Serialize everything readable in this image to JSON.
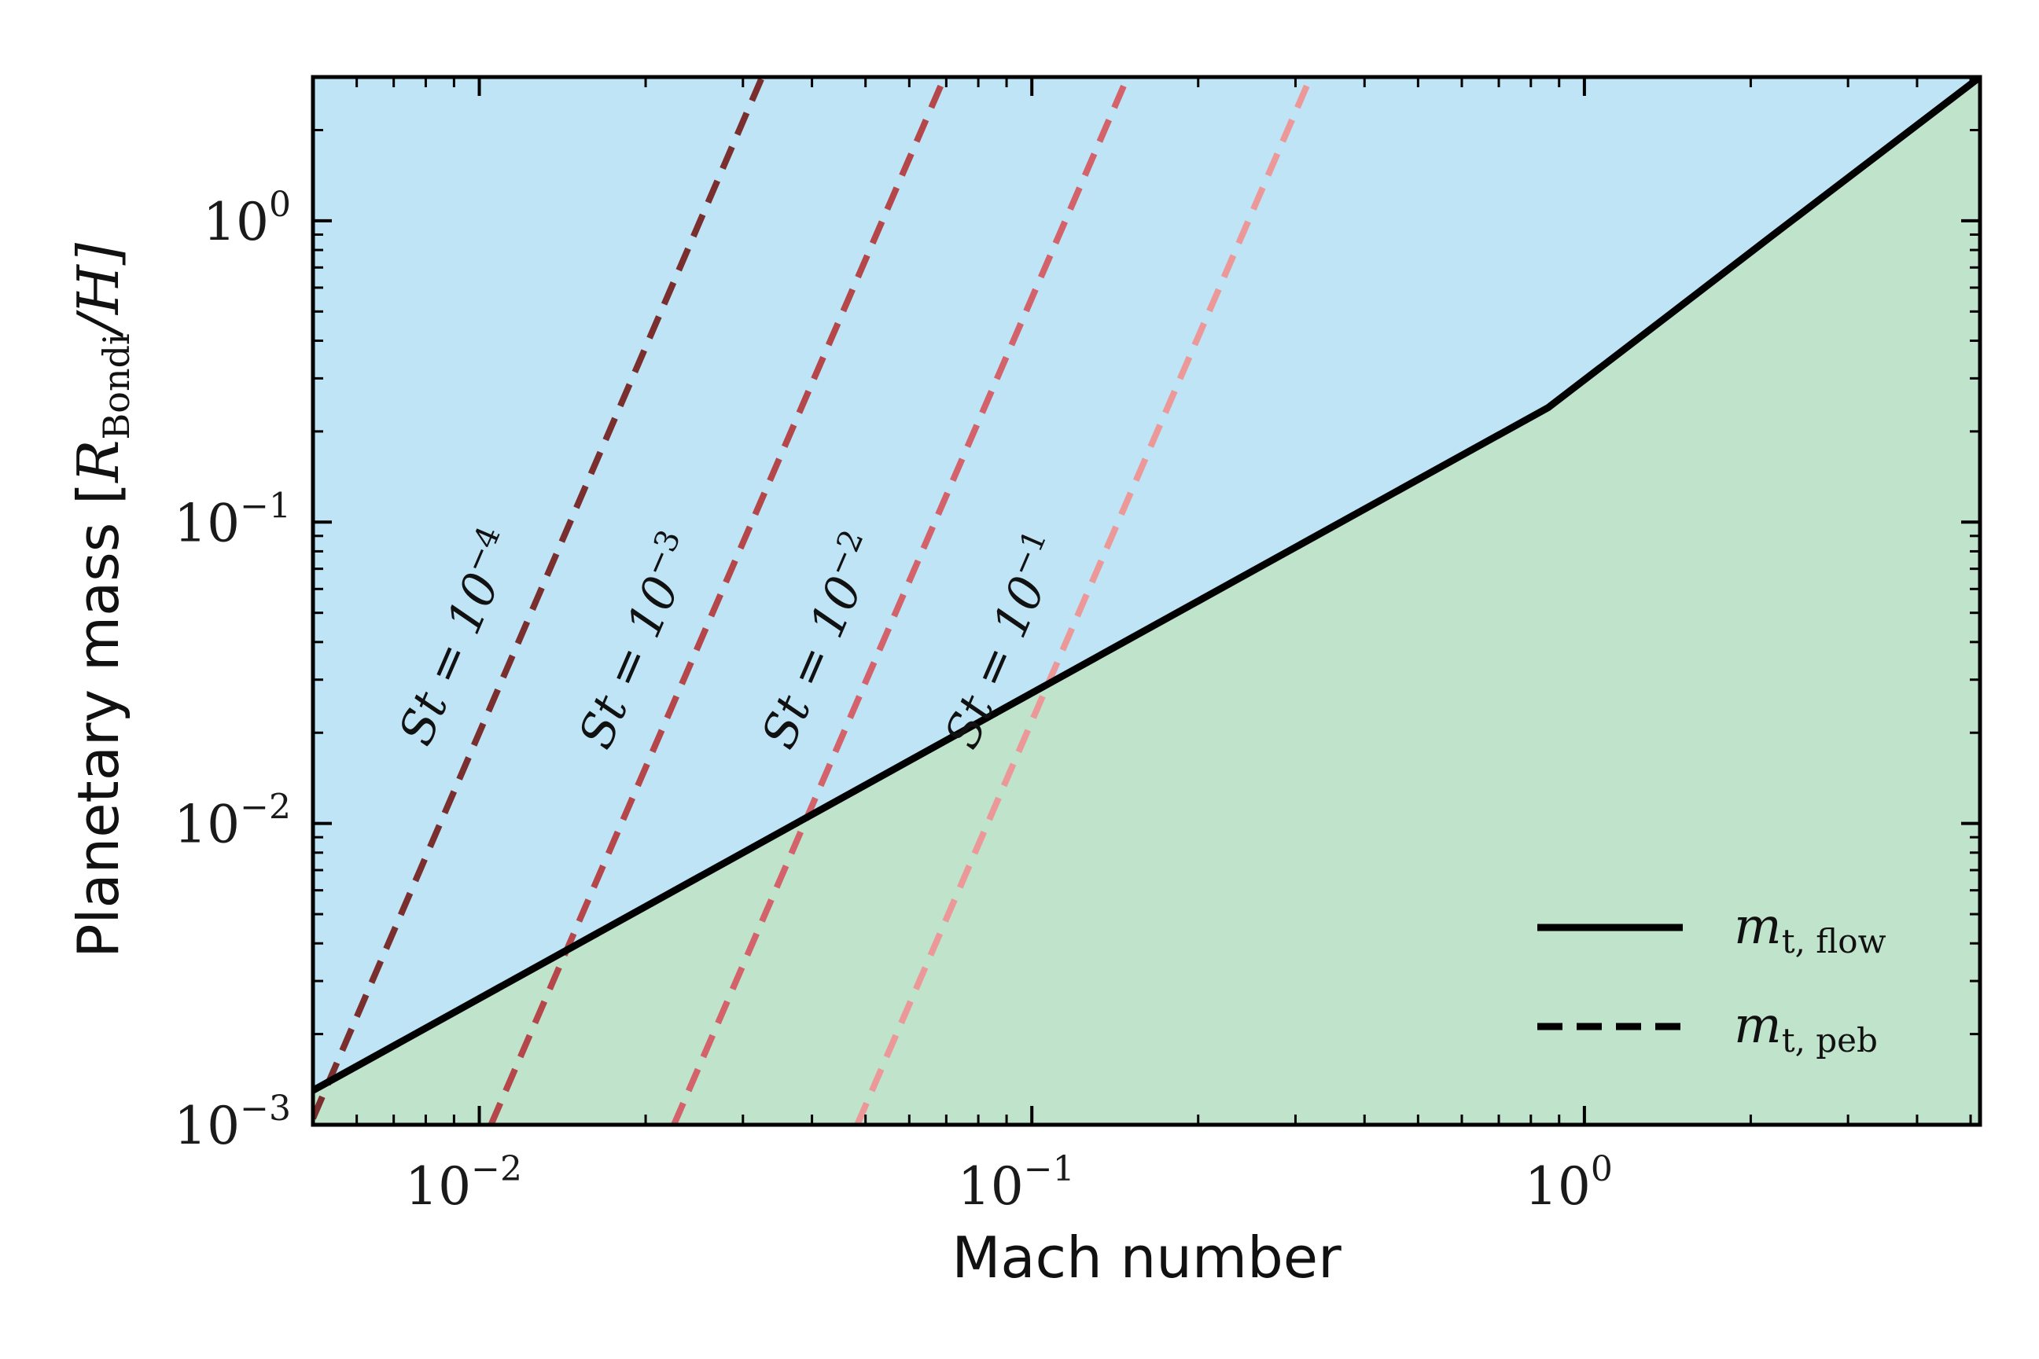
{
  "chart_data": {
    "type": "line",
    "xlabel": "Mach number",
    "ylabel": {
      "prefix": "Planetary mass [",
      "R": "R",
      "sub": "Bondi",
      "suffix": "/H]"
    },
    "xscale": "log",
    "yscale": "log",
    "xlim": [
      0.005,
      5.2
    ],
    "ylim": [
      0.001,
      3.0
    ],
    "xticks": [
      {
        "value": 0.01,
        "base": "10",
        "exp": "−2"
      },
      {
        "value": 0.1,
        "base": "10",
        "exp": "−1"
      },
      {
        "value": 1,
        "base": "10",
        "exp": "0"
      }
    ],
    "yticks": [
      {
        "value": 0.001,
        "base": "10",
        "exp": "−3"
      },
      {
        "value": 0.01,
        "base": "10",
        "exp": "−2"
      },
      {
        "value": 0.1,
        "base": "10",
        "exp": "−1"
      },
      {
        "value": 1,
        "base": "10",
        "exp": "0"
      }
    ],
    "regions": {
      "above_color": "#bfe4f5",
      "below_color": "#c0e3cb"
    },
    "flow_line": {
      "x": [
        0.005,
        0.86,
        1.45,
        2.2,
        5.2
      ],
      "y": [
        0.0013,
        0.24,
        0.5,
        0.9,
        3.0
      ],
      "color": "#000000"
    },
    "pebble_lines": [
      {
        "label_prefix": "St = 10",
        "label_exp": "−4",
        "x": [
          0.005,
          0.0325
        ],
        "y": [
          0.00105,
          3.0
        ],
        "color": "#7b2e2e"
      },
      {
        "label_prefix": "St = 10",
        "label_exp": "−3",
        "x": [
          0.0105,
          0.0695
        ],
        "y": [
          0.001,
          3.0
        ],
        "color": "#b5474a"
      },
      {
        "label_prefix": "St = 10",
        "label_exp": "−2",
        "x": [
          0.0225,
          0.149
        ],
        "y": [
          0.001,
          3.0
        ],
        "color": "#d4626a"
      },
      {
        "label_prefix": "St = 10",
        "label_exp": "−1",
        "x": [
          0.0483,
          0.3195
        ],
        "y": [
          0.001,
          3.0
        ],
        "color": "#ec9898"
      }
    ],
    "legend": {
      "position": "lower-right",
      "entries": [
        {
          "style": "solid",
          "base": "m",
          "sub": "t, flow",
          "color": "#000000"
        },
        {
          "style": "dashed",
          "base": "m",
          "sub": "t, peb",
          "color": "#000000"
        }
      ]
    }
  }
}
